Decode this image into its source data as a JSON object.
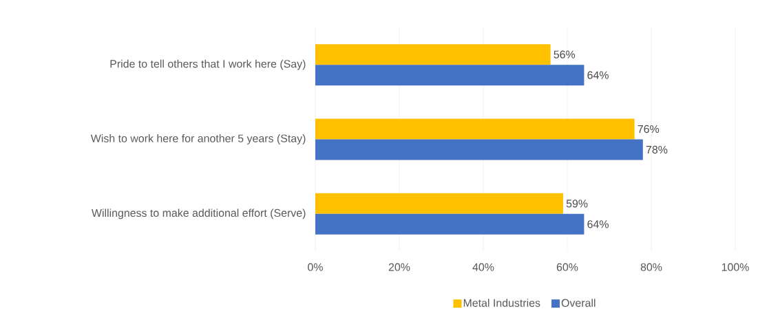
{
  "chart_data": {
    "type": "bar",
    "orientation": "horizontal",
    "categories": [
      "Pride to tell others that I work here (Say)",
      "Wish to work here for another 5 years (Stay)",
      "Willingness to make additional effort (Serve)"
    ],
    "series": [
      {
        "name": "Metal Industries",
        "color": "#ffc000",
        "values": [
          56,
          76,
          59
        ],
        "value_labels": [
          "56%",
          "76%",
          "59%"
        ]
      },
      {
        "name": "Overall",
        "color": "#4472c4",
        "values": [
          64,
          78,
          64
        ],
        "value_labels": [
          "64%",
          "78%",
          "64%"
        ]
      }
    ],
    "xlim": [
      0,
      100
    ],
    "xticks": [
      {
        "value": 0,
        "label": "0%"
      },
      {
        "value": 20,
        "label": "20%"
      },
      {
        "value": 40,
        "label": "40%"
      },
      {
        "value": 60,
        "label": "60%"
      },
      {
        "value": 80,
        "label": "80%"
      },
      {
        "value": 100,
        "label": "100%"
      }
    ],
    "grid": "x",
    "legend": "bottom"
  }
}
